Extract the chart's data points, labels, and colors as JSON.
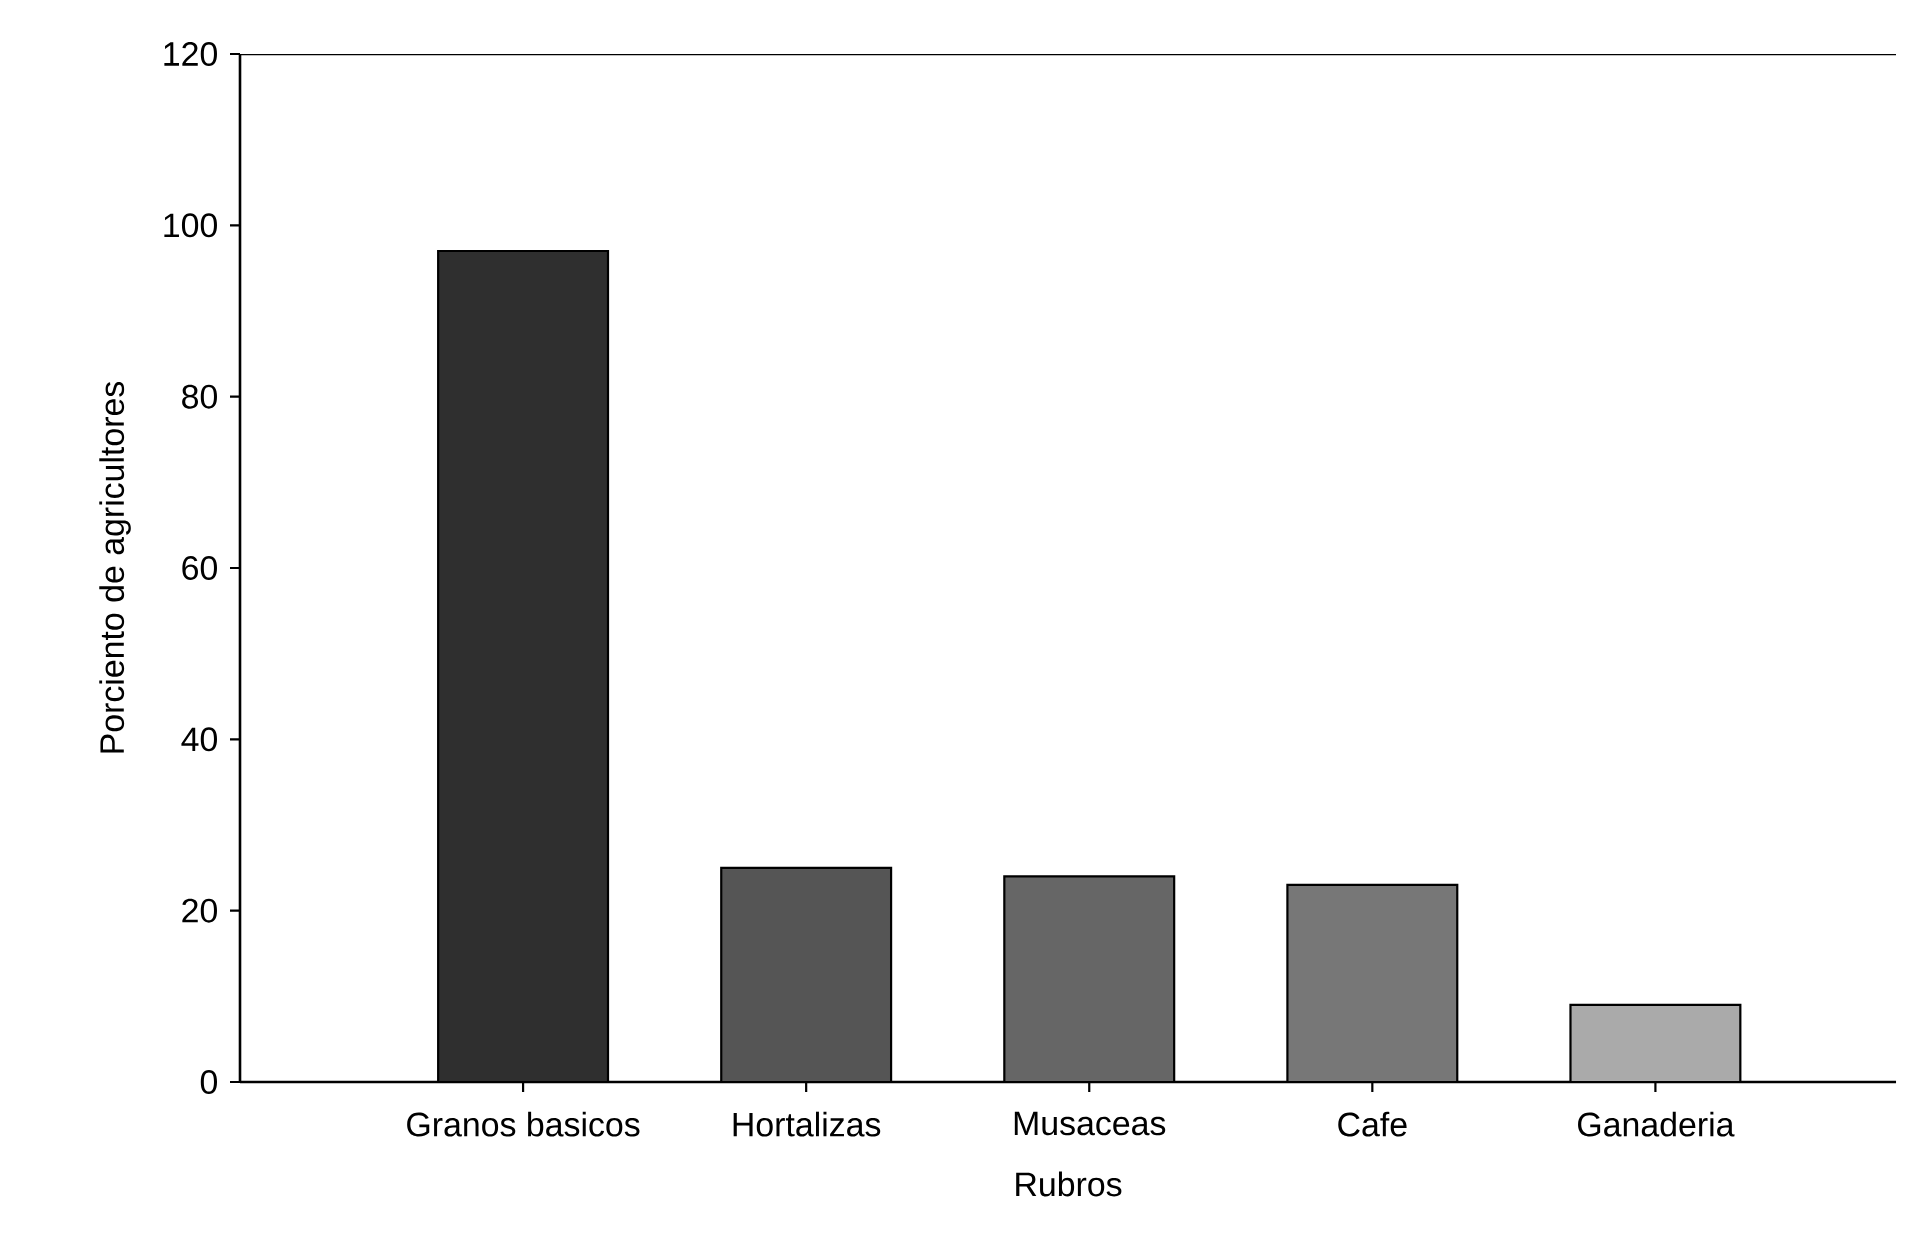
{
  "chart_data": {
    "type": "bar",
    "xlabel": "Rubros",
    "ylabel": "Porciento de agricultores",
    "categories": [
      "Granos basicos",
      "Hortalizas",
      "Musaceas",
      "Cafe",
      "Ganaderia"
    ],
    "values": [
      97,
      25,
      24,
      23,
      9
    ],
    "colors": [
      "#2f2f2f",
      "#555555",
      "#666666",
      "#777777",
      "#aaaaaa"
    ],
    "ylim": [
      0,
      120
    ],
    "yticks": [
      0,
      20,
      40,
      60,
      80,
      100,
      120
    ]
  }
}
